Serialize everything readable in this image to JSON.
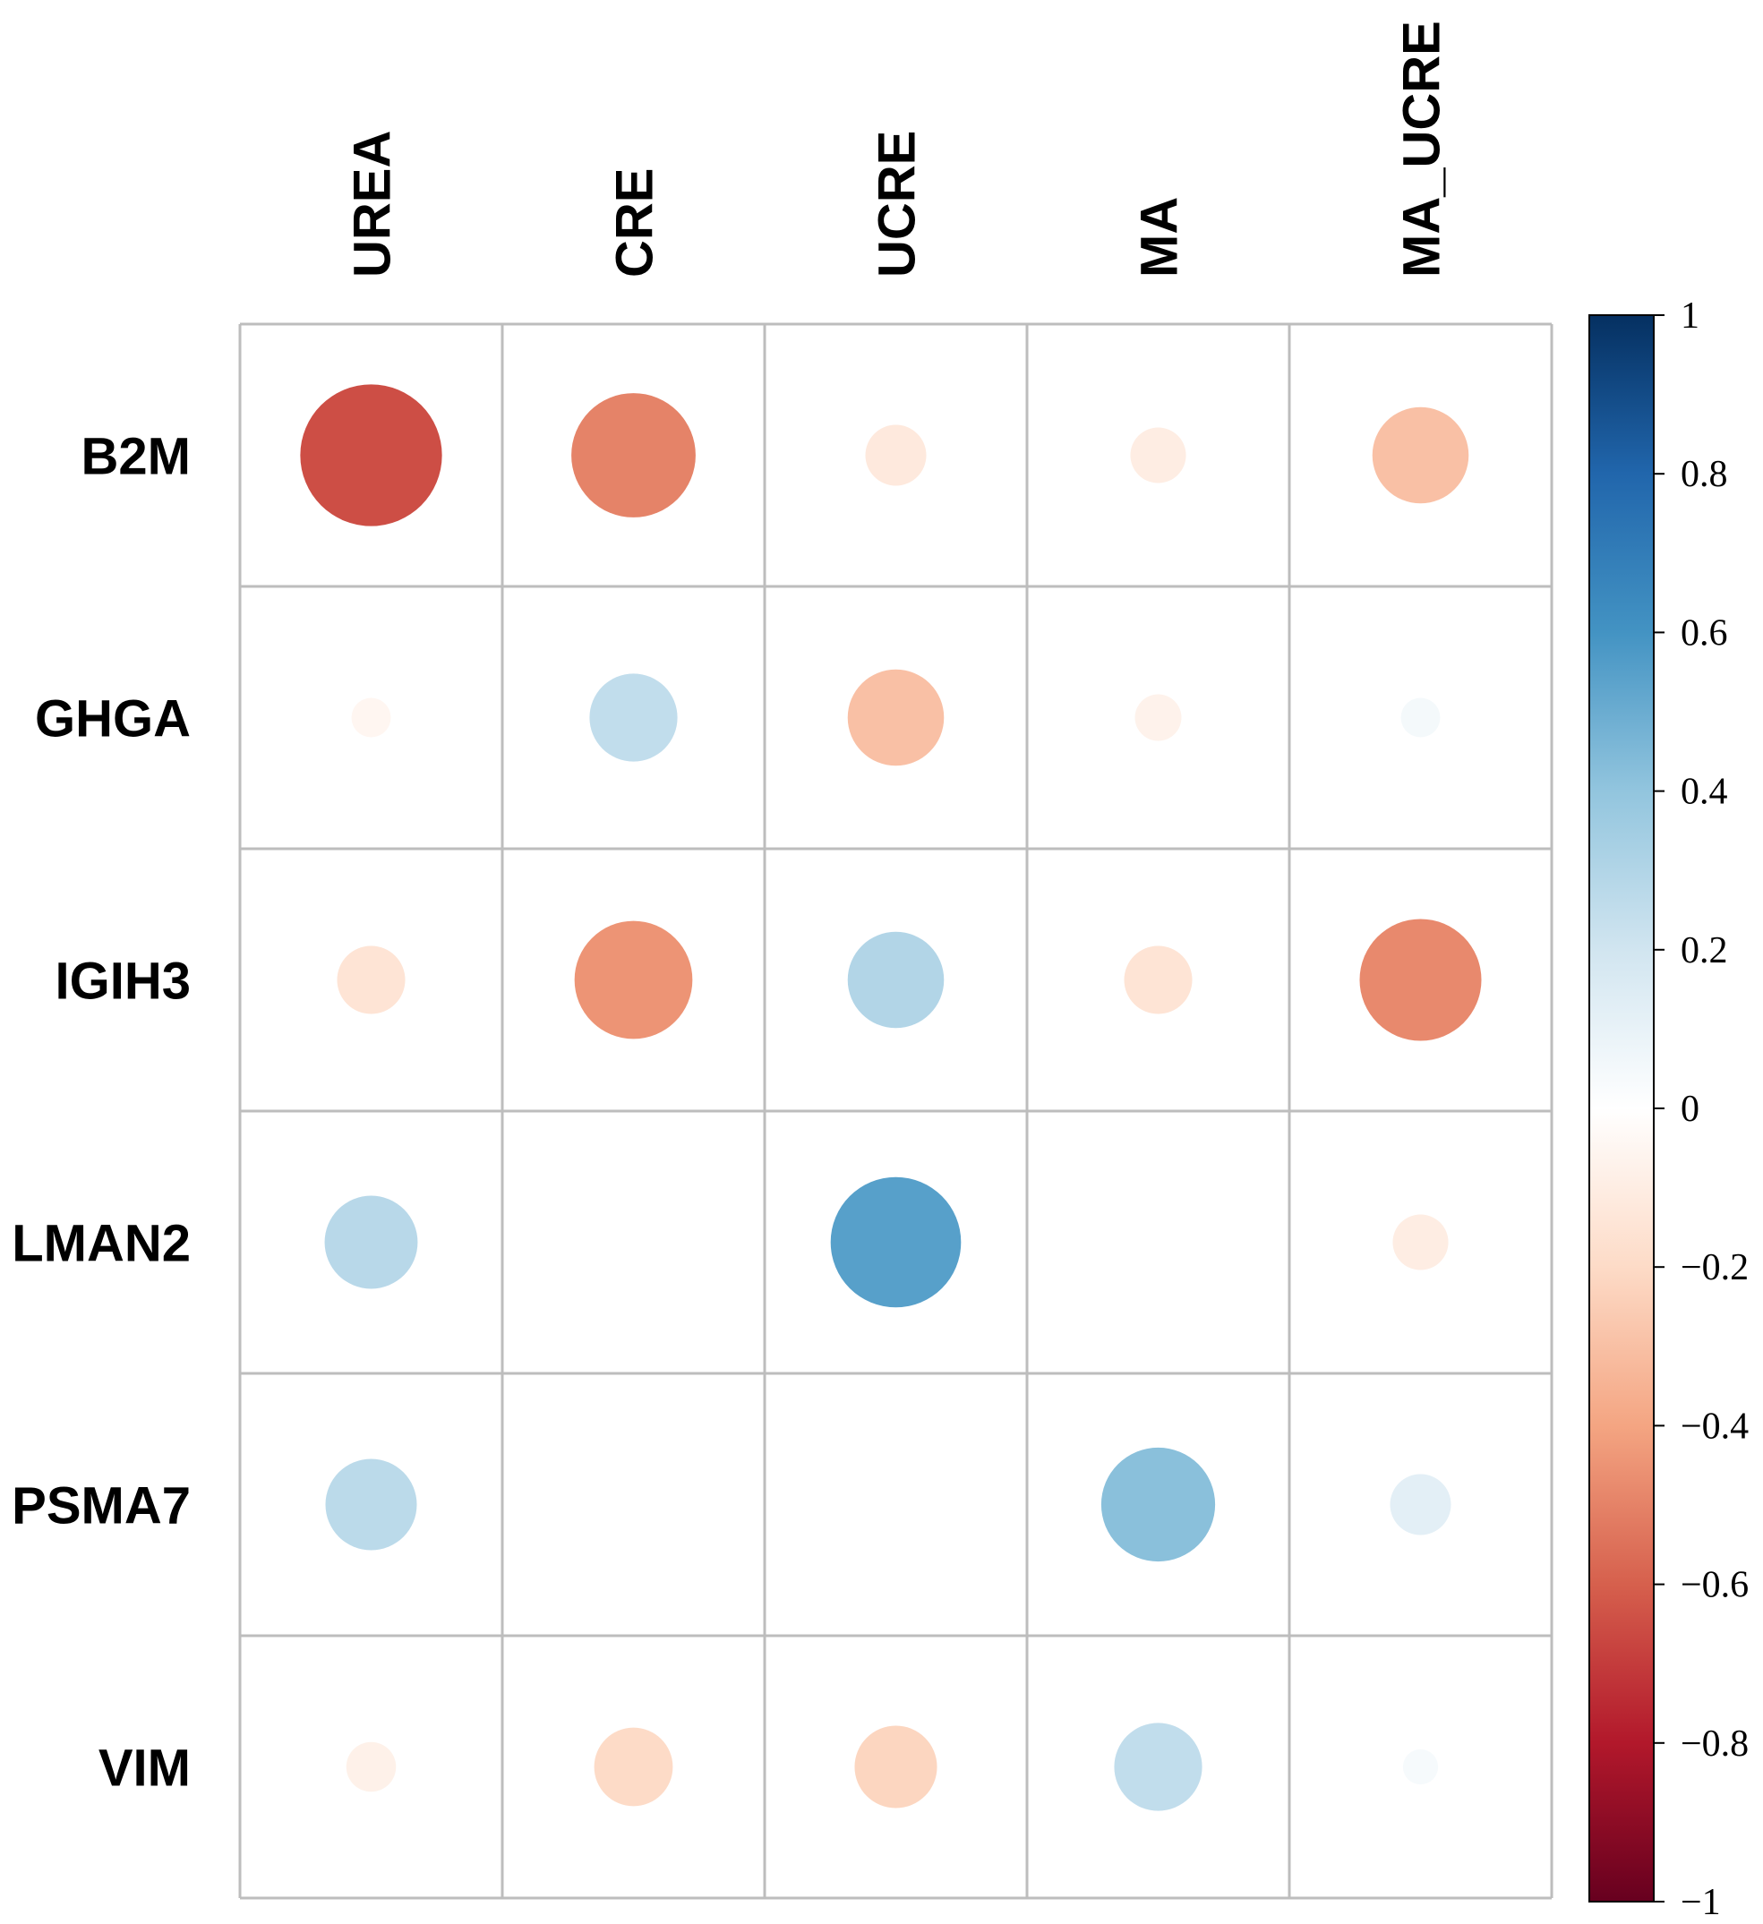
{
  "chart_data": {
    "type": "heatmap",
    "style": "correlation circles",
    "rows": [
      "B2M",
      "GHGA",
      "IGIH3",
      "LMAN2",
      "PSMA7",
      "VIM"
    ],
    "columns": [
      "UREA",
      "CRE",
      "UCRE",
      "MA",
      "MA_UCRE"
    ],
    "values": [
      [
        -0.65,
        -0.5,
        -0.12,
        -0.1,
        -0.3
      ],
      [
        -0.05,
        0.25,
        -0.3,
        -0.07,
        0.05
      ],
      [
        -0.15,
        -0.45,
        0.3,
        -0.15,
        -0.48
      ],
      [
        0.28,
        0.0,
        0.55,
        0.0,
        -0.1
      ],
      [
        0.27,
        0.0,
        0.0,
        0.42,
        0.12
      ],
      [
        -0.08,
        -0.2,
        -0.22,
        0.25,
        0.04
      ]
    ],
    "colorbar": {
      "range": [
        -1,
        1
      ],
      "ticks": [
        "1",
        "0.8",
        "0.6",
        "0.4",
        "0.2",
        "0",
        "−0.2",
        "−0.4",
        "−0.6",
        "−0.8",
        "−1"
      ],
      "tick_values": [
        1,
        0.8,
        0.6,
        0.4,
        0.2,
        0,
        -0.2,
        -0.4,
        -0.6,
        -0.8,
        -1
      ],
      "colors": [
        "#67001F",
        "#B2182B",
        "#D6604D",
        "#F4A582",
        "#FDDBC7",
        "#FFFFFF",
        "#D1E5F0",
        "#92C5DE",
        "#4393C3",
        "#2166AC",
        "#053061"
      ]
    }
  }
}
